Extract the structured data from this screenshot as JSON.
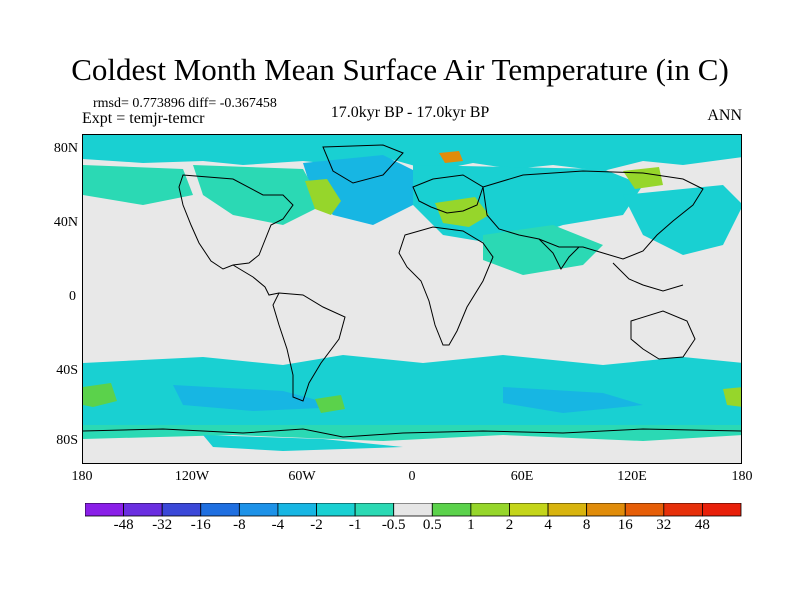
{
  "title": "Coldest Month Mean Surface Air Temperature (in C)",
  "stats": "rmsd= 0.773896  diff= -0.367458",
  "expt": "Expt = temjr-temcr",
  "center_label": "17.0kyr BP - 17.0kyr BP",
  "season": "ANN",
  "lat_labels": [
    "80N",
    "40N",
    "0",
    "40S",
    "80S"
  ],
  "lon_labels": [
    "180",
    "120W",
    "60W",
    "0",
    "60E",
    "120E",
    "180"
  ],
  "colorbar": {
    "labels": [
      "-48",
      "-32",
      "-16",
      "-8",
      "-4",
      "-2",
      "-1",
      "-0.5",
      "0.5",
      "1",
      "2",
      "4",
      "8",
      "16",
      "32",
      "48"
    ],
    "colors": [
      "#8a1fe8",
      "#6a2ee0",
      "#3b48d8",
      "#1f6fe0",
      "#1d92e8",
      "#17b6e3",
      "#19d0d2",
      "#2bd9b4",
      "#e6e6e6",
      "#5bd24b",
      "#96d62b",
      "#c4d51a",
      "#d8b40e",
      "#e08c0a",
      "#e65e08",
      "#e6300a",
      "#e8200a"
    ]
  },
  "background_color": "#e6e6e6"
}
